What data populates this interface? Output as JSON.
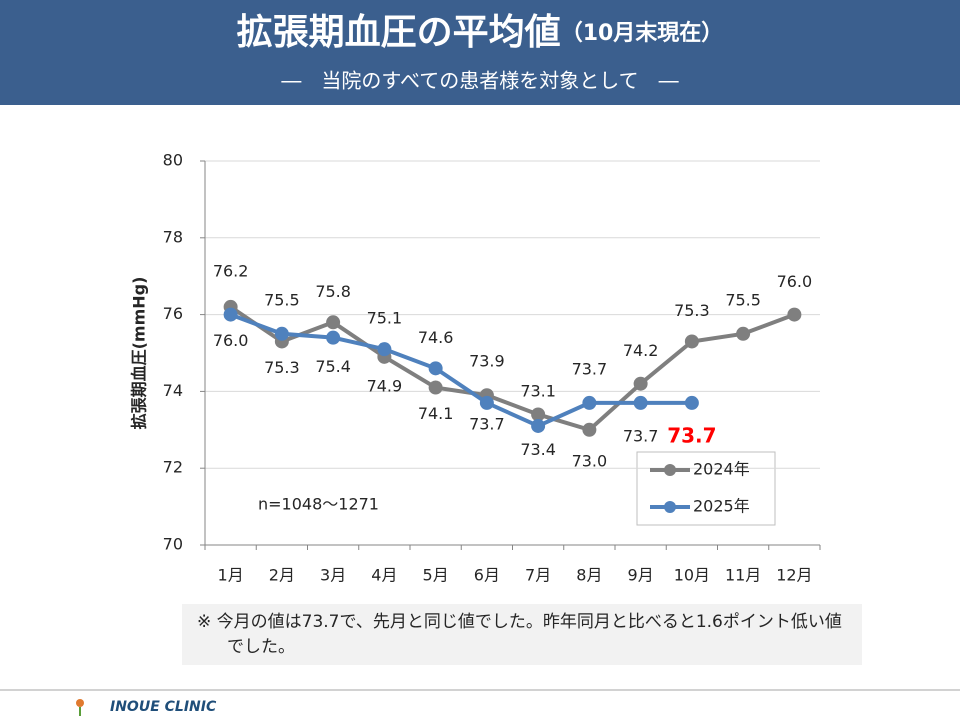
{
  "header": {
    "title": "拡張期血圧の平均値",
    "title_note": "（10月末現在）",
    "subtitle": "―　当院のすべての患者様を対象として　―"
  },
  "chart_data": {
    "type": "line",
    "y_label": "拡張期血圧(mmHg)",
    "annotation": "n=1048～1271",
    "categories": [
      "1月",
      "2月",
      "3月",
      "4月",
      "5月",
      "6月",
      "7月",
      "8月",
      "9月",
      "10月",
      "11月",
      "12月"
    ],
    "series": [
      {
        "name": "2024年",
        "color": "#7f7f7f",
        "values": [
          76.2,
          75.3,
          75.8,
          74.9,
          74.1,
          73.9,
          73.4,
          73.0,
          74.2,
          75.3,
          75.5,
          76.0
        ],
        "value_labels": [
          "76.2",
          "75.3",
          "75.8",
          "74.9",
          "74.1",
          "73.9",
          "73.4",
          "73.0",
          "74.2",
          "75.3",
          "75.5",
          "76.0"
        ]
      },
      {
        "name": "2025年",
        "color": "#4f81bd",
        "values": [
          76.0,
          75.5,
          75.4,
          75.1,
          74.6,
          73.7,
          73.1,
          73.7,
          73.7,
          73.7,
          null,
          null
        ],
        "value_labels": [
          "76.0",
          "75.5",
          "75.4",
          "75.1",
          "74.6",
          "73.7",
          "73.1",
          "73.7",
          "73.7",
          "73.7",
          null,
          null
        ]
      }
    ],
    "ylim": [
      70,
      80
    ],
    "yticks": [
      70,
      72,
      74,
      76,
      78,
      80
    ]
  },
  "note": "※ 今月の値は73.7で、先月と同じ値でした。昨年同月と比べると1.6ポイント低い値でした。",
  "footer": {
    "clinic": "INOUE CLINIC"
  }
}
